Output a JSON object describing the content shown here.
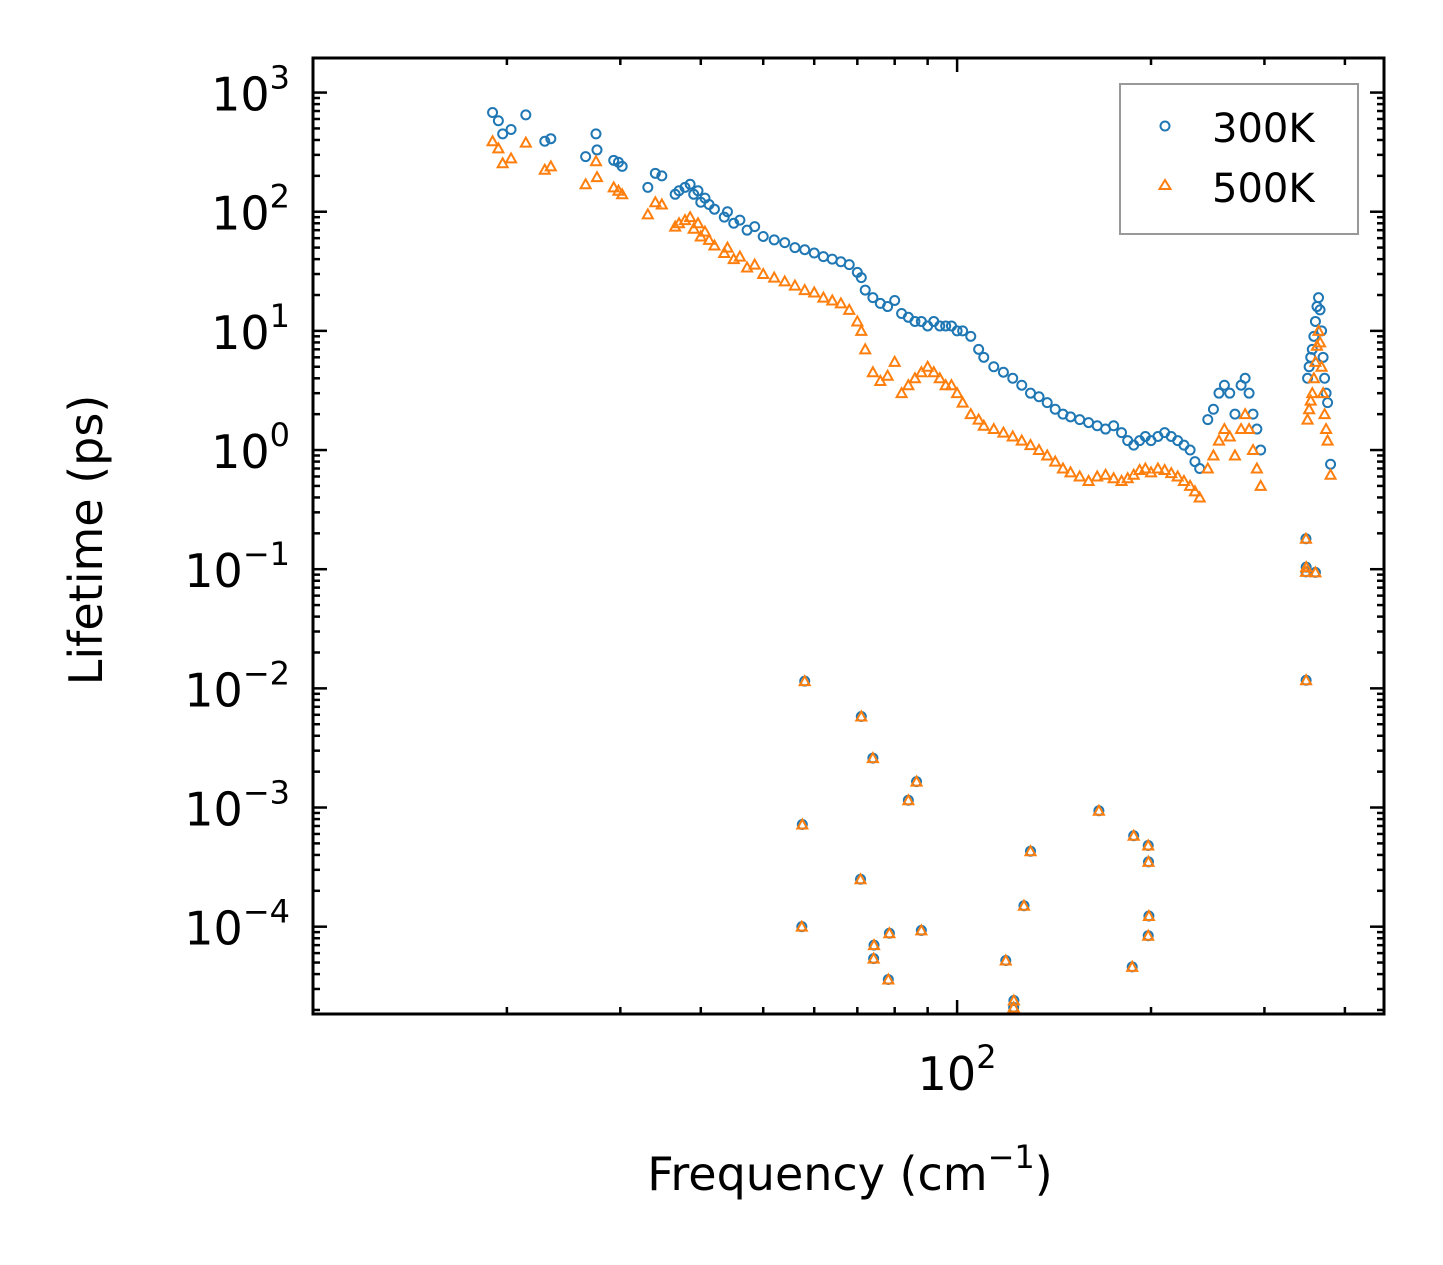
{
  "chart_data": {
    "type": "scatter",
    "title": "",
    "xlabel": "Frequency (cm",
    "xlabel_sup": "−1",
    "xlabel_close": ")",
    "ylabel": "Lifetime (ps)",
    "xscale": "log",
    "yscale": "log",
    "xlim": [
      10,
      460
    ],
    "ylim": [
      1.85e-05,
      1950
    ],
    "x_ticks": [
      {
        "value": 100,
        "base": "10",
        "exp": "2"
      }
    ],
    "y_ticks": [
      {
        "value": 1000,
        "base": "10",
        "exp": "3"
      },
      {
        "value": 100,
        "base": "10",
        "exp": "2"
      },
      {
        "value": 10,
        "base": "10",
        "exp": "1"
      },
      {
        "value": 1,
        "base": "10",
        "exp": "0"
      },
      {
        "value": 0.1,
        "base": "10",
        "exp": "−1"
      },
      {
        "value": 0.01,
        "base": "10",
        "exp": "−2"
      },
      {
        "value": 0.001,
        "base": "10",
        "exp": "−3"
      },
      {
        "value": 0.0001,
        "base": "10",
        "exp": "−4"
      }
    ],
    "legend_position": "top-right",
    "series": [
      {
        "name": "300K",
        "marker": "circle",
        "color": "#1f77b4",
        "points": [
          [
            19.0,
            680
          ],
          [
            19.4,
            580
          ],
          [
            19.7,
            450
          ],
          [
            20.3,
            490
          ],
          [
            21.4,
            650
          ],
          [
            22.9,
            390
          ],
          [
            23.4,
            410
          ],
          [
            26.5,
            290
          ],
          [
            27.5,
            450
          ],
          [
            27.6,
            330
          ],
          [
            29.3,
            270
          ],
          [
            29.8,
            260
          ],
          [
            30.2,
            240
          ],
          [
            33.1,
            160
          ],
          [
            34.0,
            210
          ],
          [
            34.8,
            200
          ],
          [
            36.5,
            140
          ],
          [
            37.0,
            150
          ],
          [
            37.8,
            160
          ],
          [
            38.5,
            170
          ],
          [
            39.0,
            140
          ],
          [
            39.6,
            150
          ],
          [
            40.0,
            120
          ],
          [
            40.6,
            130
          ],
          [
            41.2,
            115
          ],
          [
            42.0,
            105
          ],
          [
            43.5,
            90
          ],
          [
            44.0,
            100
          ],
          [
            45.0,
            80
          ],
          [
            46.0,
            85
          ],
          [
            47.2,
            70
          ],
          [
            48.5,
            75
          ],
          [
            50.0,
            62
          ],
          [
            52.0,
            58
          ],
          [
            54.0,
            55
          ],
          [
            56.0,
            50
          ],
          [
            58.0,
            48
          ],
          [
            60.0,
            45
          ],
          [
            62.0,
            42
          ],
          [
            64.0,
            40
          ],
          [
            66.0,
            38
          ],
          [
            68.0,
            36
          ],
          [
            70.0,
            31
          ],
          [
            71.0,
            28
          ],
          [
            72.0,
            22
          ],
          [
            74.0,
            19
          ],
          [
            76.0,
            17
          ],
          [
            78.0,
            16
          ],
          [
            80.0,
            18
          ],
          [
            82.0,
            14
          ],
          [
            84.0,
            13
          ],
          [
            86.0,
            12
          ],
          [
            88.0,
            12
          ],
          [
            90.0,
            11
          ],
          [
            92.0,
            12
          ],
          [
            94.0,
            11
          ],
          [
            96.0,
            11
          ],
          [
            98.0,
            11
          ],
          [
            100.0,
            10
          ],
          [
            102.0,
            10
          ],
          [
            105.0,
            9
          ],
          [
            108.0,
            7
          ],
          [
            110.0,
            6
          ],
          [
            114.0,
            5
          ],
          [
            118.0,
            4.5
          ],
          [
            122.0,
            4
          ],
          [
            126.0,
            3.5
          ],
          [
            130.0,
            3
          ],
          [
            134.0,
            2.8
          ],
          [
            138.0,
            2.5
          ],
          [
            142.0,
            2.2
          ],
          [
            146.0,
            2.0
          ],
          [
            150.0,
            1.9
          ],
          [
            155.0,
            1.8
          ],
          [
            160.0,
            1.7
          ],
          [
            165.0,
            1.6
          ],
          [
            170.0,
            1.5
          ],
          [
            175.0,
            1.6
          ],
          [
            180.0,
            1.4
          ],
          [
            184.0,
            1.2
          ],
          [
            188.0,
            1.1
          ],
          [
            192.0,
            1.2
          ],
          [
            196.0,
            1.3
          ],
          [
            200.0,
            1.2
          ],
          [
            205.0,
            1.3
          ],
          [
            210.0,
            1.4
          ],
          [
            215.0,
            1.3
          ],
          [
            220.0,
            1.2
          ],
          [
            225.0,
            1.1
          ],
          [
            230.0,
            1.0
          ],
          [
            234.0,
            0.8
          ],
          [
            238.0,
            0.7
          ],
          [
            245.0,
            1.8
          ],
          [
            250.0,
            2.2
          ],
          [
            255.0,
            3.0
          ],
          [
            260.0,
            3.5
          ],
          [
            265.0,
            3.0
          ],
          [
            270.0,
            2.0
          ],
          [
            276.0,
            3.5
          ],
          [
            280.0,
            4.0
          ],
          [
            284.0,
            3.0
          ],
          [
            288.0,
            2.0
          ],
          [
            292.0,
            1.5
          ],
          [
            296.0,
            1.0
          ],
          [
            350.0,
            4.0
          ],
          [
            352.0,
            5.0
          ],
          [
            354.0,
            6.0
          ],
          [
            356.0,
            7.0
          ],
          [
            358.0,
            9.0
          ],
          [
            360.0,
            12.0
          ],
          [
            362.0,
            16.0
          ],
          [
            364.0,
            19.0
          ],
          [
            366.0,
            15.0
          ],
          [
            368.0,
            10.0
          ],
          [
            370.0,
            6.0
          ],
          [
            372.0,
            4.0
          ],
          [
            374.0,
            3.0
          ],
          [
            376.0,
            2.5
          ],
          [
            58.0,
            0.0115
          ],
          [
            57.5,
            0.00072
          ],
          [
            57.4,
            0.0001
          ],
          [
            71.0,
            0.0058
          ],
          [
            70.8,
            0.00025
          ],
          [
            74.0,
            0.0026
          ],
          [
            74.3,
            7e-05
          ],
          [
            74.2,
            5.4e-05
          ],
          [
            78.5,
            8.8e-05
          ],
          [
            78.2,
            3.6e-05
          ],
          [
            84.0,
            0.00115
          ],
          [
            86.5,
            0.00165
          ],
          [
            88.0,
            9.3e-05
          ],
          [
            119.0,
            5.2e-05
          ],
          [
            122.5,
            2.4e-05
          ],
          [
            122.4,
            2.1e-05
          ],
          [
            127.0,
            0.00015
          ],
          [
            130.0,
            0.00043
          ],
          [
            166.0,
            0.00094
          ],
          [
            188.0,
            0.00058
          ],
          [
            187.0,
            4.6e-05
          ],
          [
            198.0,
            0.00048
          ],
          [
            198.2,
            0.00035
          ],
          [
            198.5,
            0.000123
          ],
          [
            198.0,
            8.4e-05
          ],
          [
            348.0,
            0.18
          ],
          [
            348.3,
            0.104
          ],
          [
            348.0,
            0.095
          ],
          [
            360.0,
            0.094
          ],
          [
            348.2,
            0.0117
          ],
          [
            380.0,
            0.76
          ]
        ]
      },
      {
        "name": "500K",
        "marker": "triangle",
        "color": "#ff7f0e",
        "points": [
          [
            19.0,
            390
          ],
          [
            19.4,
            340
          ],
          [
            19.7,
            255
          ],
          [
            20.3,
            280
          ],
          [
            21.4,
            380
          ],
          [
            22.9,
            225
          ],
          [
            23.4,
            240
          ],
          [
            26.5,
            170
          ],
          [
            27.5,
            265
          ],
          [
            27.6,
            195
          ],
          [
            29.3,
            160
          ],
          [
            29.8,
            150
          ],
          [
            30.2,
            140
          ],
          [
            33.1,
            95
          ],
          [
            34.0,
            120
          ],
          [
            34.8,
            115
          ],
          [
            36.5,
            75
          ],
          [
            37.0,
            80
          ],
          [
            37.8,
            85
          ],
          [
            38.5,
            90
          ],
          [
            39.0,
            72
          ],
          [
            39.6,
            80
          ],
          [
            40.0,
            62
          ],
          [
            40.6,
            68
          ],
          [
            41.2,
            58
          ],
          [
            42.0,
            52
          ],
          [
            43.5,
            45
          ],
          [
            44.0,
            50
          ],
          [
            45.0,
            40
          ],
          [
            46.0,
            42
          ],
          [
            47.2,
            34
          ],
          [
            48.5,
            36
          ],
          [
            50.0,
            30
          ],
          [
            52.0,
            28
          ],
          [
            54.0,
            26
          ],
          [
            56.0,
            24
          ],
          [
            58.0,
            22
          ],
          [
            60.0,
            21
          ],
          [
            62.0,
            19
          ],
          [
            64.0,
            18
          ],
          [
            66.0,
            17
          ],
          [
            68.0,
            15
          ],
          [
            70.0,
            12
          ],
          [
            71.0,
            10
          ],
          [
            72.0,
            7
          ],
          [
            74.0,
            4.5
          ],
          [
            76.0,
            3.8
          ],
          [
            78.0,
            4.2
          ],
          [
            80.0,
            5.5
          ],
          [
            82.0,
            3.0
          ],
          [
            84.0,
            3.5
          ],
          [
            86.0,
            4.0
          ],
          [
            88.0,
            4.5
          ],
          [
            90.0,
            5.0
          ],
          [
            92.0,
            4.5
          ],
          [
            94.0,
            4.0
          ],
          [
            96.0,
            3.5
          ],
          [
            98.0,
            3.5
          ],
          [
            100.0,
            3.0
          ],
          [
            102.0,
            2.5
          ],
          [
            105.0,
            2.0
          ],
          [
            108.0,
            1.8
          ],
          [
            110.0,
            1.6
          ],
          [
            114.0,
            1.5
          ],
          [
            118.0,
            1.4
          ],
          [
            122.0,
            1.3
          ],
          [
            126.0,
            1.2
          ],
          [
            130.0,
            1.1
          ],
          [
            134.0,
            1.0
          ],
          [
            138.0,
            0.9
          ],
          [
            142.0,
            0.8
          ],
          [
            146.0,
            0.7
          ],
          [
            150.0,
            0.65
          ],
          [
            155.0,
            0.6
          ],
          [
            160.0,
            0.55
          ],
          [
            165.0,
            0.6
          ],
          [
            170.0,
            0.62
          ],
          [
            175.0,
            0.58
          ],
          [
            180.0,
            0.55
          ],
          [
            184.0,
            0.58
          ],
          [
            188.0,
            0.62
          ],
          [
            192.0,
            0.68
          ],
          [
            196.0,
            0.7
          ],
          [
            200.0,
            0.65
          ],
          [
            205.0,
            0.7
          ],
          [
            210.0,
            0.68
          ],
          [
            215.0,
            0.64
          ],
          [
            220.0,
            0.6
          ],
          [
            225.0,
            0.55
          ],
          [
            230.0,
            0.5
          ],
          [
            234.0,
            0.45
          ],
          [
            238.0,
            0.4
          ],
          [
            245.0,
            0.7
          ],
          [
            250.0,
            0.9
          ],
          [
            255.0,
            1.2
          ],
          [
            260.0,
            1.5
          ],
          [
            265.0,
            1.3
          ],
          [
            270.0,
            0.9
          ],
          [
            276.0,
            1.5
          ],
          [
            280.0,
            2.0
          ],
          [
            284.0,
            1.5
          ],
          [
            288.0,
            1.0
          ],
          [
            292.0,
            0.7
          ],
          [
            296.0,
            0.5
          ],
          [
            350.0,
            1.8
          ],
          [
            352.0,
            2.2
          ],
          [
            354.0,
            2.6
          ],
          [
            356.0,
            3.0
          ],
          [
            358.0,
            4.0
          ],
          [
            360.0,
            5.5
          ],
          [
            362.0,
            7.5
          ],
          [
            364.0,
            10.0
          ],
          [
            366.0,
            8.0
          ],
          [
            368.0,
            5.0
          ],
          [
            370.0,
            3.0
          ],
          [
            372.0,
            2.0
          ],
          [
            374.0,
            1.5
          ],
          [
            376.0,
            1.2
          ],
          [
            58.0,
            0.0115
          ],
          [
            57.5,
            0.00072
          ],
          [
            57.4,
            0.0001
          ],
          [
            71.0,
            0.0058
          ],
          [
            70.8,
            0.00025
          ],
          [
            74.0,
            0.0026
          ],
          [
            74.3,
            7e-05
          ],
          [
            74.2,
            5.4e-05
          ],
          [
            78.5,
            8.8e-05
          ],
          [
            78.2,
            3.6e-05
          ],
          [
            84.0,
            0.00115
          ],
          [
            86.5,
            0.00165
          ],
          [
            88.0,
            9.3e-05
          ],
          [
            119.0,
            5.2e-05
          ],
          [
            122.5,
            2.4e-05
          ],
          [
            122.4,
            2.1e-05
          ],
          [
            127.0,
            0.00015
          ],
          [
            130.0,
            0.00043
          ],
          [
            166.0,
            0.00094
          ],
          [
            188.0,
            0.00058
          ],
          [
            187.0,
            4.6e-05
          ],
          [
            198.0,
            0.00048
          ],
          [
            198.2,
            0.00035
          ],
          [
            198.5,
            0.000123
          ],
          [
            198.0,
            8.4e-05
          ],
          [
            348.0,
            0.18
          ],
          [
            348.3,
            0.104
          ],
          [
            348.0,
            0.095
          ],
          [
            360.0,
            0.094
          ],
          [
            348.2,
            0.0117
          ],
          [
            380.0,
            0.62
          ]
        ]
      }
    ]
  }
}
